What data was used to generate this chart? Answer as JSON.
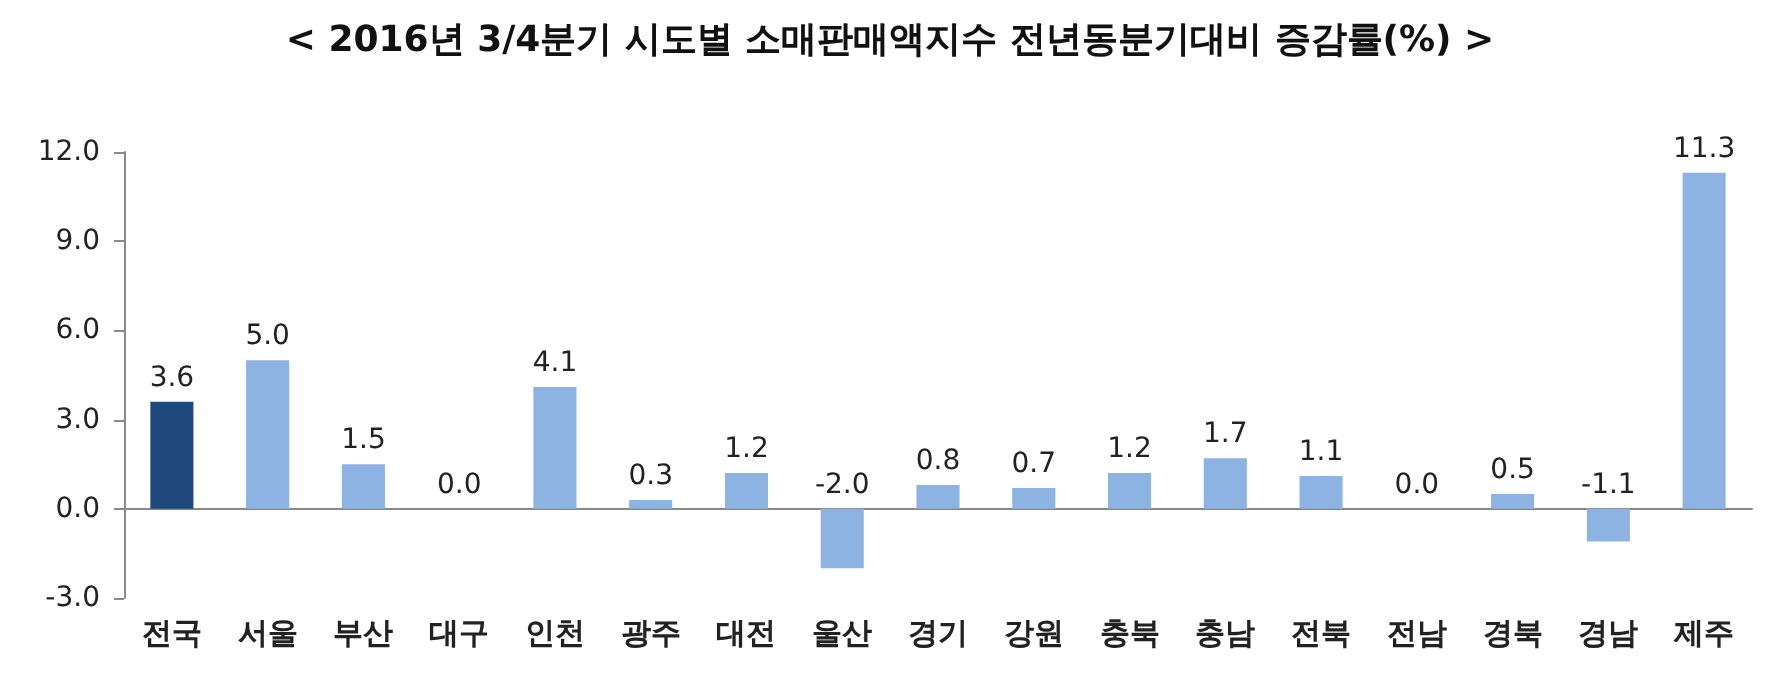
{
  "chart_data": {
    "type": "bar",
    "title": "< 2016년 3/4분기 시도별 소매판매액지수 전년동분기대비 증감률(%) >",
    "categories": [
      "전국",
      "서울",
      "부산",
      "대구",
      "인천",
      "광주",
      "대전",
      "울산",
      "경기",
      "강원",
      "충북",
      "충남",
      "전북",
      "전남",
      "경북",
      "경남",
      "제주"
    ],
    "values": [
      3.6,
      5.0,
      1.5,
      0.0,
      4.1,
      0.3,
      1.2,
      -2.0,
      0.8,
      0.7,
      1.2,
      1.7,
      1.1,
      0.0,
      0.5,
      -1.1,
      11.3
    ],
    "value_labels": [
      "3.6",
      "5.0",
      "1.5",
      "0.0",
      "4.1",
      "0.3",
      "1.2",
      "-2.0",
      "0.8",
      "0.7",
      "1.2",
      "1.7",
      "1.1",
      "0.0",
      "0.5",
      "-1.1",
      "11.3"
    ],
    "colors": [
      "#1f497d",
      "#8db3e2",
      "#8db3e2",
      "#8db3e2",
      "#8db3e2",
      "#8db3e2",
      "#8db3e2",
      "#8db3e2",
      "#8db3e2",
      "#8db3e2",
      "#8db3e2",
      "#8db3e2",
      "#8db3e2",
      "#8db3e2",
      "#8db3e2",
      "#8db3e2",
      "#8db3e2"
    ],
    "ylim": [
      -3,
      12
    ],
    "yticks": [
      {
        "value": -3,
        "label": "-3.0"
      },
      {
        "value": 0,
        "label": "0.0"
      },
      {
        "value": 3,
        "label": "3.0"
      },
      {
        "value": 6,
        "label": "6.0"
      },
      {
        "value": 9,
        "label": "9.0"
      },
      {
        "value": 12,
        "label": "12.0"
      }
    ]
  }
}
